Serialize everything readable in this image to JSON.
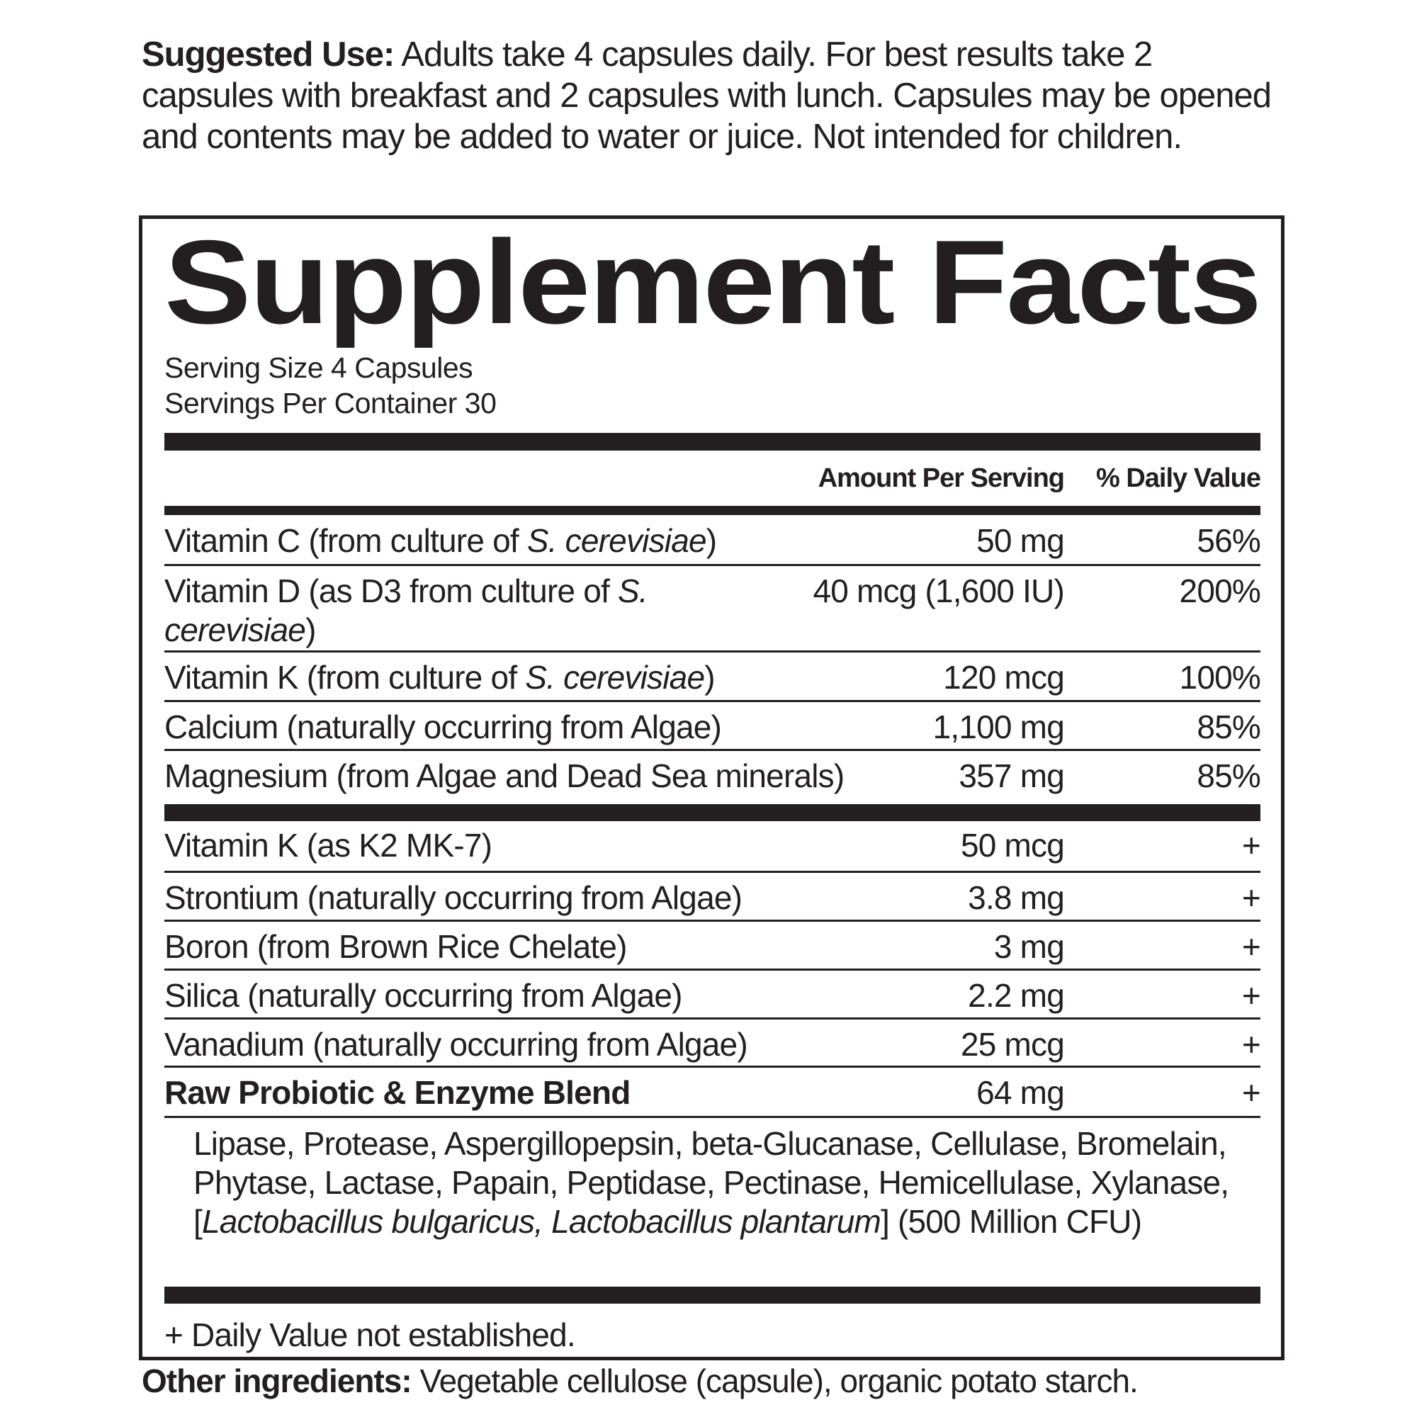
{
  "suggested_use": {
    "label": "Suggested Use:",
    "text": " Adults take 4 capsules daily. For best results take 2 capsules with breakfast and 2 capsules with lunch. Capsules may be opened and contents may be added to water or juice. Not intended for children."
  },
  "facts": {
    "title": "Supplement Facts",
    "serving_size": "Serving Size 4 Capsules",
    "servings_per_container": "Servings Per Container 30",
    "header_amount": "Amount Per Serving",
    "header_dv": "% Daily Value",
    "group1": [
      {
        "name": "Vitamin C (from culture of ",
        "italic": "S. cerevisiae",
        "end": ")",
        "amount": "50 mg",
        "dv": "56%"
      },
      {
        "name": "Vitamin D (as D3 from culture of ",
        "italic": "S. cerevisiae",
        "end": ")",
        "amount": "40 mcg (1,600 IU)",
        "dv": "200%"
      },
      {
        "name": "Vitamin K (from culture of ",
        "italic": "S. cerevisiae",
        "end": ")",
        "amount": "120 mcg",
        "dv": "100%"
      },
      {
        "name": "Calcium (naturally occurring from Algae)",
        "amount": "1,100 mg",
        "dv": "85%"
      },
      {
        "name": "Magnesium (from Algae and Dead Sea minerals)",
        "amount": "357 mg",
        "dv": "85%"
      }
    ],
    "group2": [
      {
        "name": "Vitamin K (as K2 MK-7)",
        "amount": "50 mcg",
        "dv": "+"
      },
      {
        "name": "Strontium (naturally occurring from Algae)",
        "amount": "3.8 mg",
        "dv": "+"
      },
      {
        "name": "Boron (from Brown Rice Chelate)",
        "amount": "3 mg",
        "dv": "+"
      },
      {
        "name": "Silica (naturally occurring from Algae)",
        "amount": "2.2 mg",
        "dv": "+"
      },
      {
        "name": "Vanadium (naturally occurring from Algae)",
        "amount": "25 mcg",
        "dv": "+"
      },
      {
        "name": "Raw Probiotic & Enzyme Blend",
        "bold": true,
        "amount": "64 mg",
        "dv": "+"
      }
    ],
    "blend": {
      "text": "Lipase, Protease, Aspergillopepsin, beta-Glucanase, Cellulase, Bromelain, Phytase, Lactase, Papain, Peptidase, Pectinase, Hemicellulase, Xylanase, [",
      "italic": "Lactobacillus bulgaricus, Lactobacillus plantarum",
      "end": "] (500 Million CFU)"
    },
    "footnote": "+ Daily Value not established."
  },
  "other_ingredients": {
    "label": "Other ingredients:",
    "text": " Vegetable cellulose (capsule), organic potato starch."
  }
}
